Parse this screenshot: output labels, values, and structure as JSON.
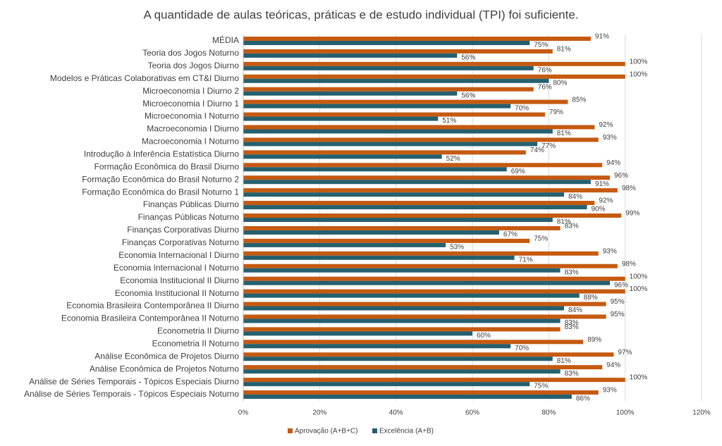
{
  "chart_data": {
    "type": "bar",
    "orientation": "horizontal",
    "title": "A quantidade de aulas teóricas, práticas e de estudo individual (TPI) foi suficiente.",
    "categories": [
      "MÉDIA",
      "Teoria dos Jogos Noturno",
      "Teoria dos Jogos Diurno",
      "Modelos e Práticas Colaborativas em CT&I Diurno",
      "Microeconomia I Diurno 2",
      "Microeconomia I Diurno 1",
      "Microeconomia I Noturno",
      "Macroeconomia I Diurno",
      "Macroeconomia I Noturno",
      "Introdução à Inferência Estatística Diurno",
      "Formação Econômica do Brasil Diurno",
      "Formação Econômica do Brasil Noturno 2",
      "Formação Econômica do Brasil Noturno 1",
      "Finanças Públicas Diurno",
      "Finanças Públicas Noturno",
      "Finanças Corporativas Diurno",
      "Finanças Corporativas Noturno",
      "Economia Internacional I Diurno",
      "Economia Internacional I Noturno",
      "Economia Institucional II Diurno",
      "Economia Institucional II Noturno",
      "Economia Brasileira Contemporânea II Diurno",
      "Economia Brasileira Contemporânea II Noturno",
      "Econometria II Diurno",
      "Econometria II Noturno",
      "Análise Econômica de Projetos Diurno",
      "Análise Econômica de Projetos Noturno",
      "Análise de Séries Temporais - Tópicos Especiais Diurno",
      "Análise de Séries Temporais - Tópicos Especiais Noturno"
    ],
    "series": [
      {
        "name": "Aprovação (A+B+C)",
        "color": "#c55a11",
        "values": [
          91,
          81,
          100,
          100,
          76,
          85,
          79,
          92,
          93,
          74,
          94,
          96,
          98,
          92,
          99,
          83,
          75,
          93,
          98,
          100,
          100,
          95,
          95,
          83,
          89,
          97,
          94,
          100,
          93
        ],
        "value_labels": [
          "91%",
          "81%",
          "100%",
          "100%",
          "76%",
          "85%",
          "79%",
          "92%",
          "93%",
          "74%",
          "94%",
          "96%",
          "98%",
          "92%",
          "99%",
          "83%",
          "75%",
          "93%",
          "98%",
          "100%",
          "100%",
          "95%",
          "95%",
          "83%",
          "89%",
          "97%",
          "94%",
          "100%",
          "93%"
        ]
      },
      {
        "name": "Excelência (A+B)",
        "color": "#25606f",
        "values": [
          75,
          56,
          76,
          80,
          56,
          70,
          51,
          81,
          77,
          52,
          69,
          91,
          84,
          90,
          81,
          67,
          53,
          71,
          83,
          96,
          88,
          84,
          83,
          60,
          70,
          81,
          83,
          75,
          86
        ],
        "value_labels": [
          "75%",
          "56%",
          "76%",
          "80%",
          "56%",
          "70%",
          "51%",
          "81%",
          "77%",
          "52%",
          "69%",
          "91%",
          "84%",
          "90%",
          "81%",
          "67%",
          "53%",
          "71%",
          "83%",
          "96%",
          "88%",
          "84%",
          "83%",
          "60%",
          "70%",
          "81%",
          "83%",
          "75%",
          "86%"
        ]
      }
    ],
    "xlim": [
      0,
      120
    ],
    "xticks": [
      {
        "value": 0,
        "label": "0%"
      },
      {
        "value": 20,
        "label": "20%"
      },
      {
        "value": 40,
        "label": "40%"
      },
      {
        "value": 60,
        "label": "60%"
      },
      {
        "value": 80,
        "label": "80%"
      },
      {
        "value": 100,
        "label": "100%"
      },
      {
        "value": 120,
        "label": "120%"
      }
    ],
    "grid": true,
    "legend": "bottom"
  }
}
